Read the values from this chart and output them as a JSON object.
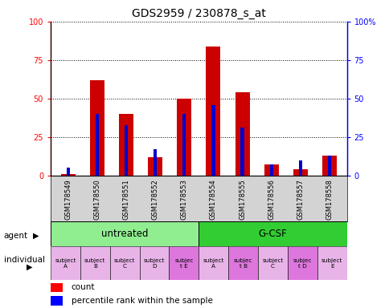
{
  "title": "GDS2959 / 230878_s_at",
  "samples": [
    "GSM178549",
    "GSM178550",
    "GSM178551",
    "GSM178552",
    "GSM178553",
    "GSM178554",
    "GSM178555",
    "GSM178556",
    "GSM178557",
    "GSM178558"
  ],
  "count_values": [
    1,
    62,
    40,
    12,
    50,
    84,
    54,
    7,
    4,
    13
  ],
  "percentile_values": [
    5,
    40,
    33,
    17,
    40,
    46,
    31,
    7,
    10,
    13
  ],
  "bar_color": "#cc0000",
  "pct_color": "#0000cc",
  "ylim": [
    0,
    100
  ],
  "yticks": [
    0,
    25,
    50,
    75,
    100
  ],
  "agent_labels": [
    "untreated",
    "G-CSF"
  ],
  "agent_colors": [
    "#90ee90",
    "#32cd32"
  ],
  "individual_highlight": [
    4,
    6,
    8
  ],
  "individual_color_normal": "#e8b4e8",
  "individual_color_highlight": "#dd77dd",
  "sample_bg_color": "#d3d3d3",
  "legend_count_label": "count",
  "legend_pct_label": "percentile rank within the sample",
  "ind_labels": [
    "subject\nA",
    "subject\nB",
    "subject\nC",
    "subject\nD",
    "subjec\nt E",
    "subject\nA",
    "subjec\nt B",
    "subject\nC",
    "subjec\nt D",
    "subject\nE"
  ]
}
